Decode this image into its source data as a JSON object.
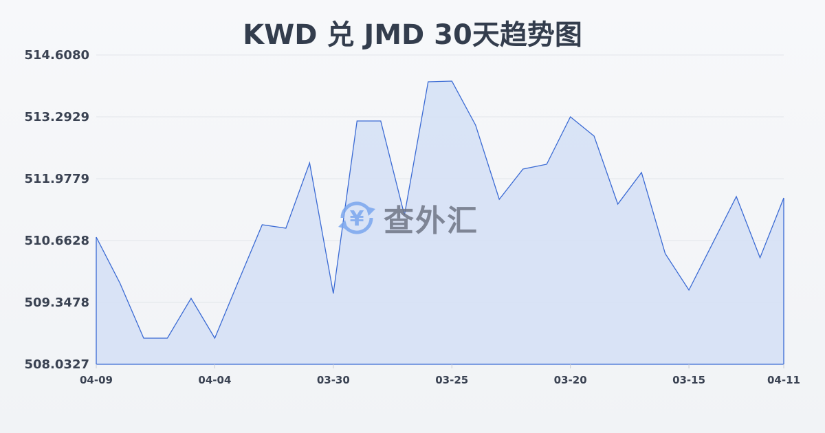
{
  "chart_data": {
    "type": "area",
    "title": "KWD 兑 JMD 30天趋势图",
    "xlabel": "",
    "ylabel": "",
    "ylim": [
      508.0327,
      514.608
    ],
    "y_ticks": [
      "508.0327",
      "509.3478",
      "510.6628",
      "511.9779",
      "513.2929",
      "514.6080"
    ],
    "x_ticks": [
      {
        "index": 0,
        "label": "04-09"
      },
      {
        "index": 5,
        "label": "04-04"
      },
      {
        "index": 10,
        "label": "03-30"
      },
      {
        "index": 15,
        "label": "03-25"
      },
      {
        "index": 20,
        "label": "03-20"
      },
      {
        "index": 25,
        "label": "03-15"
      },
      {
        "index": 29,
        "label": "04-11"
      }
    ],
    "grid": true,
    "values": [
      510.736,
      509.757,
      508.588,
      508.588,
      509.435,
      508.588,
      509.801,
      510.999,
      510.926,
      512.314,
      509.538,
      513.205,
      513.205,
      511.203,
      514.038,
      514.053,
      513.118,
      511.54,
      512.183,
      512.285,
      513.293,
      512.884,
      511.438,
      512.11,
      510.385,
      509.611,
      510.604,
      511.598,
      510.298,
      511.569
    ],
    "colors": {
      "line": "#3a6ad4",
      "fill": "#d6e1f5",
      "grid": "#e2e5ea"
    }
  },
  "watermark": {
    "text": "查外汇",
    "icon": "yen-exchange-icon"
  }
}
